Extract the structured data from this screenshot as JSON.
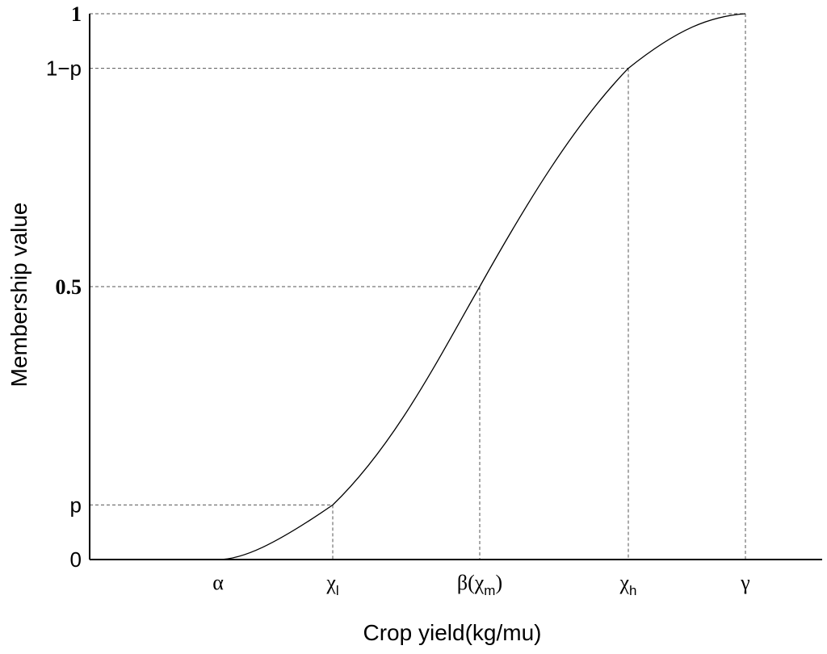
{
  "chart_data": {
    "type": "line",
    "xlabel": "Crop yield(kg/mu)",
    "ylabel": "Membership value",
    "grid": false,
    "ylim": [
      0,
      1
    ],
    "p": 0.1,
    "y_ticks": [
      {
        "value": 0,
        "label": "0"
      },
      {
        "value": 0.1,
        "label": "p"
      },
      {
        "value": 0.5,
        "label": "0.5"
      },
      {
        "value": 0.9,
        "label": "1−p"
      },
      {
        "value": 1,
        "label": "1"
      }
    ],
    "x_ticks": [
      {
        "key": "alpha",
        "label": "α",
        "sub": "",
        "suffix": ""
      },
      {
        "key": "chi_l",
        "label": "χ",
        "sub": "l",
        "suffix": ""
      },
      {
        "key": "beta",
        "label": "β(χ",
        "sub": "m",
        "suffix": ")"
      },
      {
        "key": "chi_h",
        "label": "χ",
        "sub": "h",
        "suffix": ""
      },
      {
        "key": "gamma",
        "label": "γ",
        "sub": "",
        "suffix": ""
      }
    ],
    "series": [
      {
        "curve": "s-shaped membership function",
        "points": [
          {
            "x": "alpha",
            "y": 0
          },
          {
            "x": "chi_l",
            "y": 0.1
          },
          {
            "x": "beta",
            "y": 0.5
          },
          {
            "x": "chi_h",
            "y": 0.9
          },
          {
            "x": "gamma",
            "y": 1
          }
        ]
      }
    ],
    "reference_lines": [
      {
        "x": "chi_l",
        "y": 0.1
      },
      {
        "x": "beta",
        "y": 0.5
      },
      {
        "x": "chi_h",
        "y": 0.9
      },
      {
        "x": "gamma",
        "y": 1
      }
    ]
  }
}
